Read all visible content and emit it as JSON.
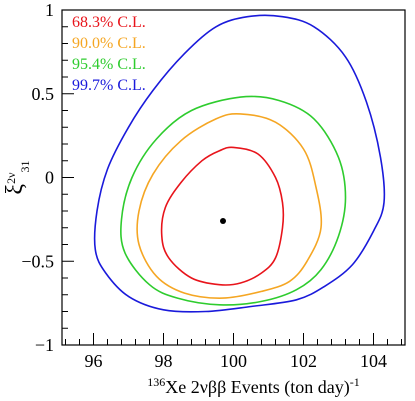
{
  "chart_data": {
    "type": "contour",
    "title": "",
    "xlabel": {
      "sup": "136",
      "main": "Xe 2νββ Events (ton day)",
      "exp": "-1"
    },
    "ylabel": {
      "main": "ξ",
      "sup": "2ν",
      "sub": "31"
    },
    "xlim": [
      95.1,
      104.9
    ],
    "ylim": [
      -1,
      1
    ],
    "x_ticks": [
      96,
      98,
      100,
      102,
      104
    ],
    "y_ticks": [
      -1,
      -0.5,
      0,
      0.5,
      1
    ],
    "x_tick_labels": [
      "96",
      "98",
      "100",
      "102",
      "104"
    ],
    "y_tick_labels": [
      "−1",
      "−0.5",
      "0",
      "0.5",
      "1"
    ],
    "grid": false,
    "legend_position": "top-left",
    "best_fit": {
      "x": 99.7,
      "y": -0.26
    },
    "series": [
      {
        "name": "68.3% C.L.",
        "color": "#e8141b",
        "points": [
          [
            100.0,
            0.18
          ],
          [
            100.7,
            0.14
          ],
          [
            101.2,
            0.0
          ],
          [
            101.4,
            -0.15
          ],
          [
            101.4,
            -0.3
          ],
          [
            101.2,
            -0.48
          ],
          [
            100.8,
            -0.57
          ],
          [
            100.2,
            -0.63
          ],
          [
            99.6,
            -0.64
          ],
          [
            98.8,
            -0.6
          ],
          [
            98.15,
            -0.48
          ],
          [
            97.95,
            -0.35
          ],
          [
            98.05,
            -0.18
          ],
          [
            98.5,
            -0.03
          ],
          [
            99.1,
            0.1
          ],
          [
            99.6,
            0.16
          ]
        ]
      },
      {
        "name": "90.0% C.L.",
        "color": "#f5a623",
        "points": [
          [
            100.2,
            0.38
          ],
          [
            101.2,
            0.33
          ],
          [
            102.0,
            0.17
          ],
          [
            102.35,
            -0.05
          ],
          [
            102.5,
            -0.3
          ],
          [
            102.1,
            -0.5
          ],
          [
            101.6,
            -0.62
          ],
          [
            100.8,
            -0.68
          ],
          [
            99.7,
            -0.72
          ],
          [
            98.6,
            -0.69
          ],
          [
            97.8,
            -0.59
          ],
          [
            97.3,
            -0.4
          ],
          [
            97.3,
            -0.2
          ],
          [
            97.7,
            0.02
          ],
          [
            98.5,
            0.22
          ],
          [
            99.5,
            0.35
          ]
        ]
      },
      {
        "name": "95.4% C.L.",
        "color": "#2ecc2e",
        "points": [
          [
            100.2,
            0.48
          ],
          [
            101.3,
            0.46
          ],
          [
            102.3,
            0.35
          ],
          [
            103.0,
            0.12
          ],
          [
            103.2,
            -0.12
          ],
          [
            103.0,
            -0.35
          ],
          [
            102.5,
            -0.55
          ],
          [
            101.8,
            -0.67
          ],
          [
            100.8,
            -0.74
          ],
          [
            99.6,
            -0.76
          ],
          [
            98.4,
            -0.72
          ],
          [
            97.6,
            -0.64
          ],
          [
            96.9,
            -0.45
          ],
          [
            96.8,
            -0.25
          ],
          [
            97.1,
            0.0
          ],
          [
            97.8,
            0.23
          ],
          [
            98.8,
            0.4
          ]
        ]
      },
      {
        "name": "99.7% C.L.",
        "color": "#1a1adb",
        "points": [
          [
            100.4,
            0.96
          ],
          [
            101.4,
            0.96
          ],
          [
            102.3,
            0.9
          ],
          [
            103.2,
            0.72
          ],
          [
            103.8,
            0.45
          ],
          [
            104.2,
            0.12
          ],
          [
            104.3,
            -0.15
          ],
          [
            104.0,
            -0.32
          ],
          [
            103.4,
            -0.52
          ],
          [
            102.6,
            -0.65
          ],
          [
            101.8,
            -0.73
          ],
          [
            100.5,
            -0.77
          ],
          [
            99.2,
            -0.8
          ],
          [
            98.0,
            -0.79
          ],
          [
            97.0,
            -0.71
          ],
          [
            96.35,
            -0.57
          ],
          [
            96.05,
            -0.43
          ],
          [
            96.1,
            -0.2
          ],
          [
            96.4,
            0.05
          ],
          [
            97.0,
            0.3
          ],
          [
            97.7,
            0.52
          ],
          [
            98.6,
            0.74
          ],
          [
            99.5,
            0.9
          ]
        ]
      }
    ]
  }
}
